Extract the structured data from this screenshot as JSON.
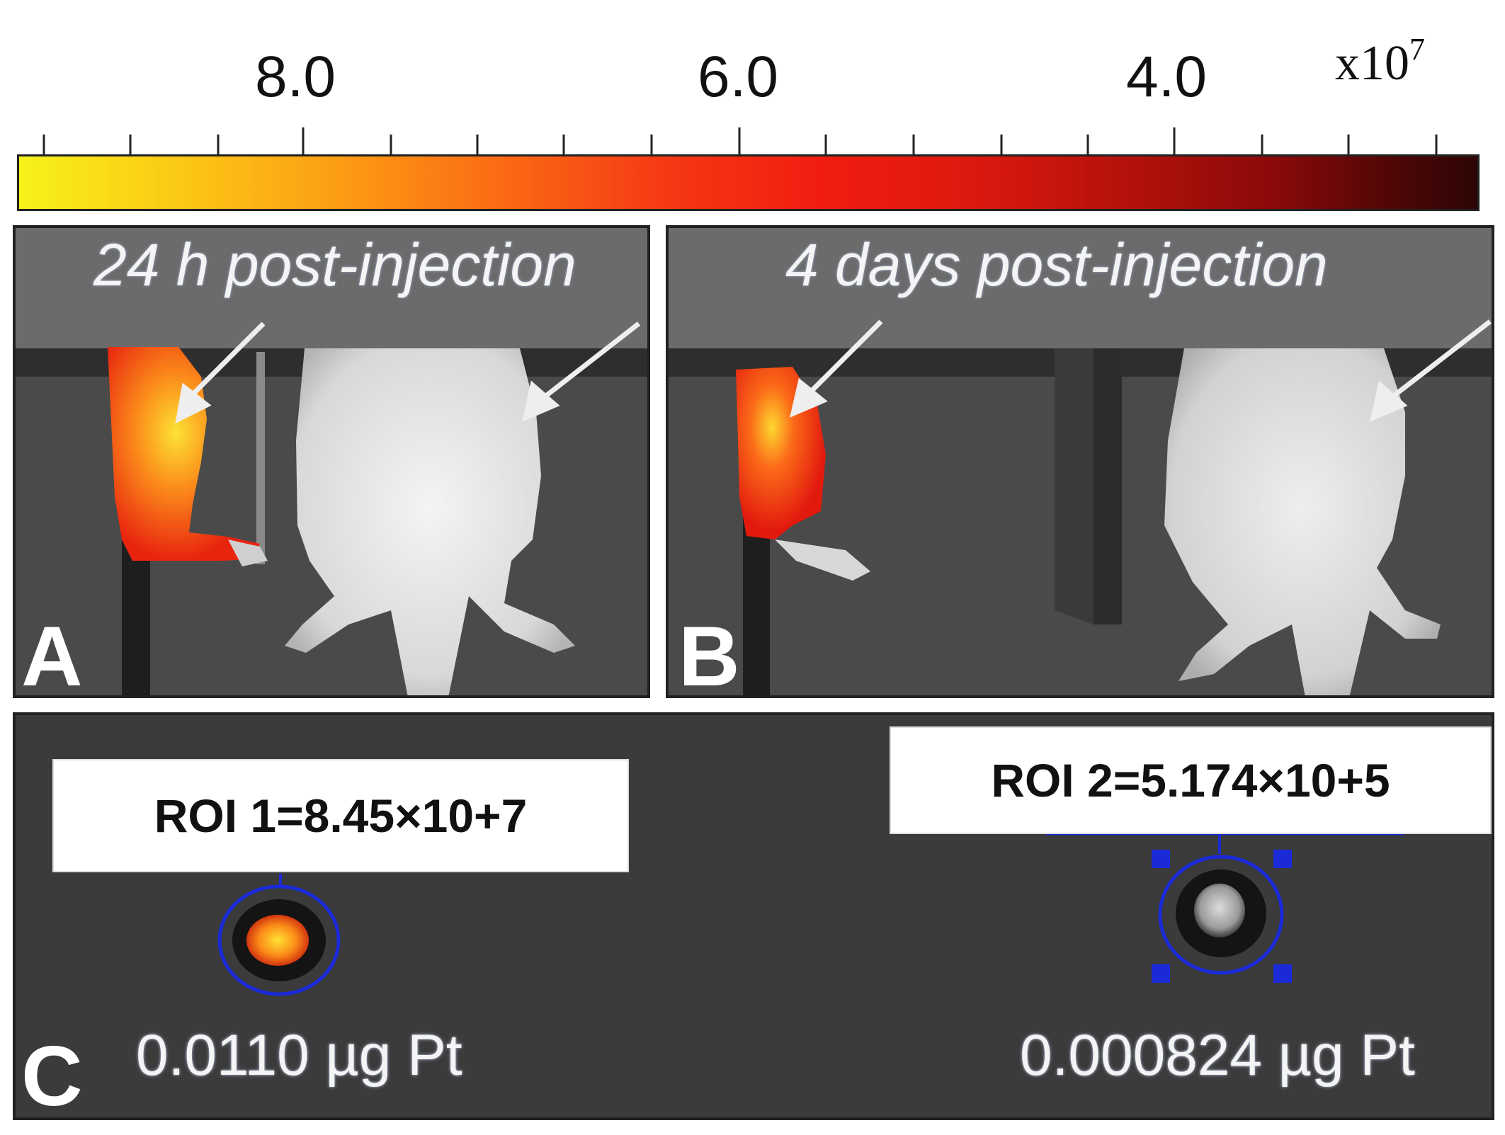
{
  "colorbar": {
    "tick_labels": [
      "8.0",
      "6.0",
      "4.0"
    ],
    "exponent_base": "x10",
    "exponent_power": "7",
    "colors": [
      "#f7f21a",
      "#fca514",
      "#f21c10",
      "#8a0a09",
      "#2e0505"
    ]
  },
  "panel_a": {
    "caption": "24 h post-injection",
    "letter": "A"
  },
  "panel_b": {
    "caption": "4 days post-injection",
    "letter": "B"
  },
  "panel_c": {
    "letter": "C",
    "roi_1": {
      "label": "ROI 1=8.45×10+7",
      "dose": "0.0110 µg Pt"
    },
    "roi_2": {
      "label": "ROI 2=5.174×10+5",
      "dose": "0.000824 µg Pt"
    },
    "roi_circle_color": "#1a2ad8"
  }
}
